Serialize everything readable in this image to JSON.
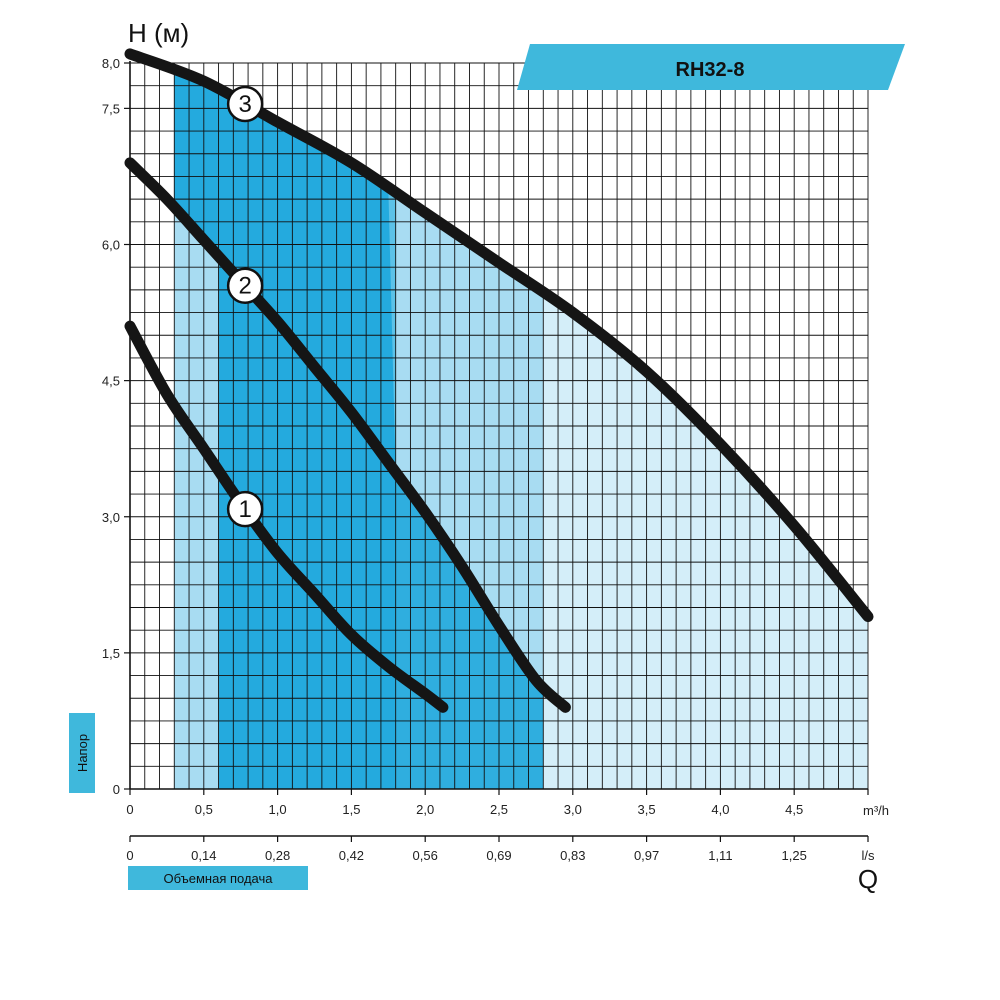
{
  "chart_data": {
    "type": "line",
    "model": "RH32-8",
    "ylabel": "H (м)",
    "ylabel_side": "Напор",
    "xlabel": "Q",
    "xlabel_side": "Объемная подача",
    "x_unit": "m³/h",
    "x2_unit": "l/s",
    "xlim": [
      0,
      5.0
    ],
    "ylim": [
      0,
      8.0
    ],
    "x_ticks": [
      0,
      0.5,
      1.0,
      1.5,
      2.0,
      2.5,
      3.0,
      3.5,
      4.0,
      4.5
    ],
    "x_tick_labels": [
      "0",
      "0,5",
      "1,0",
      "1,5",
      "2,0",
      "2,5",
      "3,0",
      "3,5",
      "4,0",
      "4,5"
    ],
    "x2_ticks": [
      0,
      0.5,
      1.0,
      1.5,
      2.0,
      2.5,
      3.0,
      3.5,
      4.0,
      4.5
    ],
    "x2_tick_labels": [
      "0",
      "0,14",
      "0,28",
      "0,42",
      "0,56",
      "0,69",
      "0,83",
      "0,97",
      "1,11",
      "1,25"
    ],
    "y_ticks": [
      0,
      1.5,
      3.0,
      4.5,
      6.0,
      7.5,
      8.0
    ],
    "y_tick_labels": [
      "0",
      "1,5",
      "3,0",
      "4,5",
      "6,0",
      "7,5",
      "8,0"
    ],
    "grid": true,
    "series": [
      {
        "name": "1",
        "x": [
          0,
          0.25,
          0.5,
          0.75,
          1.0,
          1.25,
          1.5,
          1.75,
          2.0,
          2.12
        ],
        "y": [
          5.1,
          4.35,
          3.75,
          3.15,
          2.6,
          2.15,
          1.7,
          1.35,
          1.05,
          0.9
        ]
      },
      {
        "name": "2",
        "x": [
          0,
          0.25,
          0.5,
          0.75,
          1.0,
          1.25,
          1.5,
          1.75,
          2.0,
          2.25,
          2.5,
          2.75,
          2.95
        ],
        "y": [
          6.9,
          6.5,
          6.05,
          5.6,
          5.15,
          4.65,
          4.15,
          3.6,
          3.05,
          2.45,
          1.8,
          1.2,
          0.9
        ]
      },
      {
        "name": "3",
        "x": [
          0,
          0.5,
          1.0,
          1.5,
          2.0,
          2.5,
          3.0,
          3.5,
          4.0,
          4.5,
          5.0
        ],
        "y": [
          8.1,
          7.8,
          7.35,
          6.9,
          6.35,
          5.8,
          5.25,
          4.6,
          3.8,
          2.9,
          1.9
        ]
      }
    ],
    "colors": {
      "band_dark": "#1aa6dc",
      "band_mid": "#5cc2e8",
      "band_light": "#a8dcf2",
      "band_pale": "#d4eef9",
      "curve": "#151515",
      "banner": "#3fb8dc",
      "pill": "#3fb8dc"
    }
  }
}
